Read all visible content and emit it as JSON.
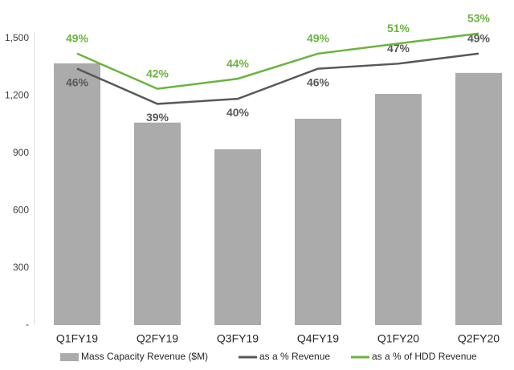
{
  "chart_data": {
    "type": "bar-line",
    "categories": [
      "Q1FY19",
      "Q2FY19",
      "Q3FY19",
      "Q4FY19",
      "Q1FY20",
      "Q2FY20"
    ],
    "series": [
      {
        "name": "Mass Capacity Revenue ($M)",
        "type": "bar",
        "color": "#ababab",
        "values": [
          1370,
          1060,
          920,
          1080,
          1210,
          1320
        ]
      },
      {
        "name": "as a % Revenue",
        "type": "line",
        "axis": "y2",
        "color": "#595959",
        "values": [
          46,
          39,
          40,
          46,
          47,
          49
        ],
        "value_labels": [
          "46%",
          "39%",
          "40%",
          "46%",
          "47%",
          "49%"
        ]
      },
      {
        "name": "as a % of HDD Revenue",
        "type": "line",
        "axis": "y2",
        "color": "#6ab43e",
        "values": [
          49,
          42,
          44,
          49,
          51,
          53
        ],
        "value_labels": [
          "49%",
          "42%",
          "44%",
          "49%",
          "51%",
          "53%"
        ]
      }
    ],
    "ylim": [
      0,
      1500
    ],
    "yticks": [
      {
        "value": 0,
        "label": "-"
      },
      300,
      600,
      900,
      {
        "value": 1200,
        "label": "1,200"
      },
      {
        "value": 1500,
        "label": "1,500"
      }
    ],
    "y2lim": [
      -5,
      52
    ],
    "legend": "bottom"
  }
}
